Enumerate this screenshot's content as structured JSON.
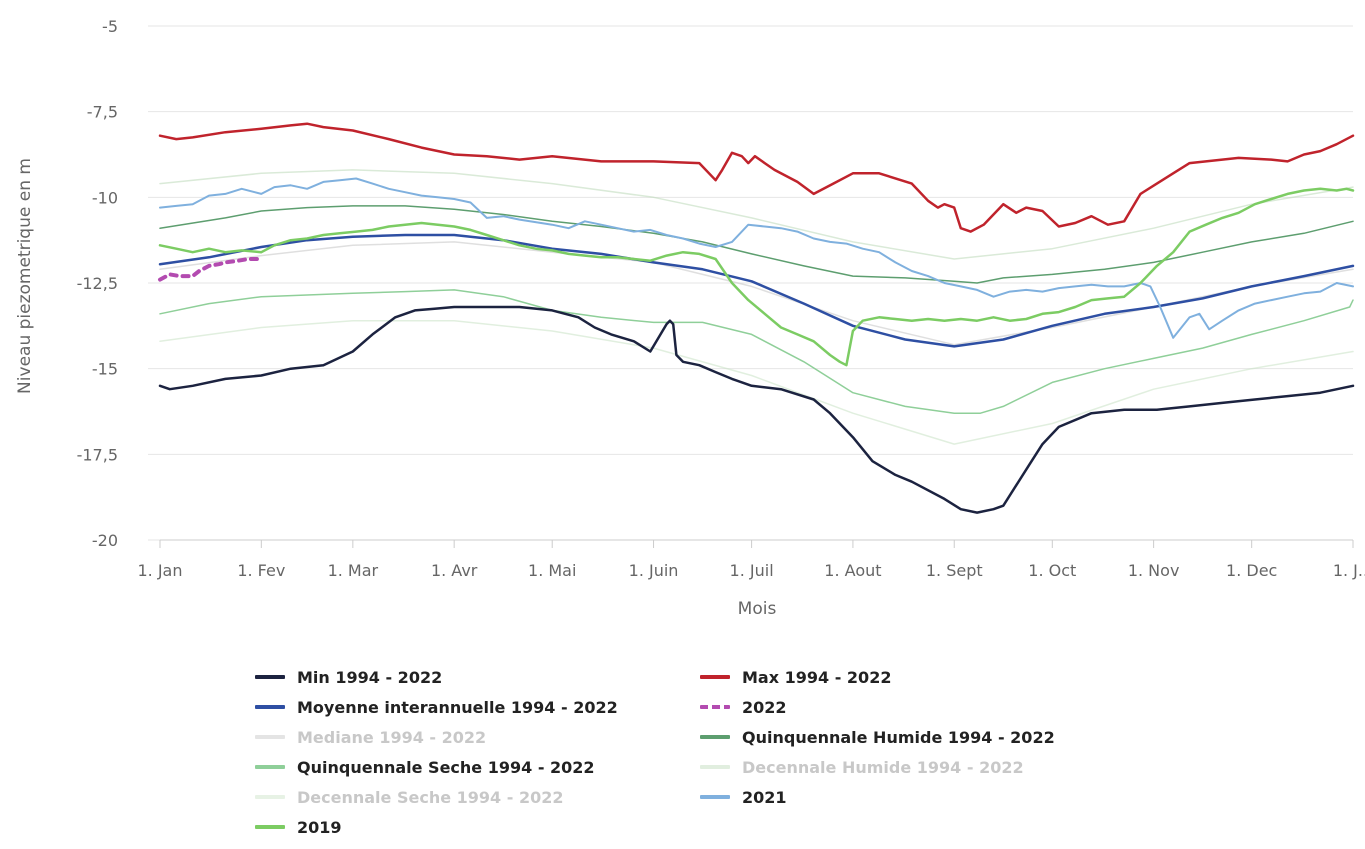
{
  "chart_data": {
    "type": "line",
    "title": "",
    "xlabel": "Mois",
    "ylabel": "Niveau piezometrique en m",
    "ylim": [
      -20,
      -5
    ],
    "yticks": [
      -5,
      -7.5,
      -10,
      -12.5,
      -15,
      -17.5,
      -20
    ],
    "ytick_labels": [
      "-5",
      "-7,5",
      "-10",
      "-12,5",
      "-15",
      "-17,5",
      "-20"
    ],
    "xlim": [
      0,
      365
    ],
    "xticks": [
      0,
      31,
      59,
      90,
      120,
      151,
      181,
      212,
      243,
      273,
      304,
      334,
      365
    ],
    "xtick_labels": [
      "1. Jan",
      "1. Fev",
      "1. Mar",
      "1. Avr",
      "1. Mai",
      "1. Juin",
      "1. Juil",
      "1. Aout",
      "1. Sept",
      "1. Oct",
      "1. Nov",
      "1. Dec",
      "1. J..."
    ],
    "x_unit": "day of year",
    "grid": "horizontal",
    "legend_position": "bottom",
    "series": [
      {
        "name": "Decennale Humide 1994 - 2022",
        "color": "#bcd9b8",
        "width": 1.5,
        "hidden": true,
        "x": [
          0,
          31,
          59,
          90,
          120,
          151,
          181,
          212,
          243,
          273,
          304,
          334,
          365
        ],
        "y": [
          -9.6,
          -9.3,
          -9.2,
          -9.3,
          -9.6,
          -10.0,
          -10.6,
          -11.3,
          -11.8,
          -11.5,
          -10.9,
          -10.2,
          -9.7
        ]
      },
      {
        "name": "Decennale Seche 1994 - 2022",
        "color": "#c9e2c5",
        "width": 1.5,
        "hidden": true,
        "x": [
          0,
          31,
          59,
          90,
          120,
          151,
          181,
          212,
          243,
          273,
          304,
          334,
          365
        ],
        "y": [
          -14.2,
          -13.8,
          -13.6,
          -13.6,
          -13.9,
          -14.4,
          -15.2,
          -16.3,
          -17.2,
          -16.6,
          -15.6,
          -15.0,
          -14.5
        ]
      },
      {
        "name": "Mediane 1994 - 2022",
        "color": "#c4c4c4",
        "width": 1.5,
        "hidden": true,
        "x": [
          0,
          31,
          59,
          90,
          120,
          151,
          181,
          212,
          243,
          273,
          304,
          334,
          365
        ],
        "y": [
          -12.1,
          -11.7,
          -11.4,
          -11.3,
          -11.6,
          -11.9,
          -12.6,
          -13.6,
          -14.3,
          -13.8,
          -13.2,
          -12.6,
          -12.1
        ]
      },
      {
        "name": "Quinquennale Humide 1994 - 2022",
        "color": "#5d9e6f",
        "width": 1.5,
        "x": [
          0,
          20,
          31,
          45,
          59,
          75,
          90,
          105,
          120,
          135,
          151,
          166,
          181,
          197,
          212,
          228,
          243,
          250,
          258,
          273,
          289,
          304,
          319,
          334,
          350,
          365
        ],
        "y": [
          -10.9,
          -10.6,
          -10.4,
          -10.3,
          -10.25,
          -10.25,
          -10.35,
          -10.5,
          -10.7,
          -10.85,
          -11.05,
          -11.3,
          -11.65,
          -12.0,
          -12.3,
          -12.35,
          -12.45,
          -12.5,
          -12.35,
          -12.25,
          -12.1,
          -11.9,
          -11.6,
          -11.3,
          -11.05,
          -10.7
        ]
      },
      {
        "name": "Quinquennale Seche 1994 - 2022",
        "color": "#8fcf99",
        "width": 1.5,
        "x": [
          0,
          15,
          31,
          45,
          59,
          75,
          90,
          105,
          120,
          135,
          151,
          166,
          181,
          197,
          212,
          228,
          243,
          251,
          258,
          273,
          289,
          304,
          319,
          334,
          350,
          364,
          365
        ],
        "y": [
          -13.4,
          -13.1,
          -12.9,
          -12.85,
          -12.8,
          -12.75,
          -12.7,
          -12.9,
          -13.3,
          -13.5,
          -13.65,
          -13.65,
          -14.0,
          -14.8,
          -15.7,
          -16.1,
          -16.3,
          -16.3,
          -16.1,
          -15.4,
          -15.0,
          -14.7,
          -14.4,
          -14.0,
          -13.6,
          -13.2,
          -13.0
        ]
      },
      {
        "name": "Min 1994 - 2022",
        "color": "#1c2340",
        "width": 2.5,
        "x": [
          0,
          3,
          10,
          20,
          31,
          40,
          50,
          59,
          65,
          72,
          78,
          84,
          90,
          100,
          110,
          120,
          128,
          133,
          138,
          145,
          150,
          155,
          156,
          157,
          158,
          160,
          165,
          170,
          175,
          181,
          190,
          200,
          205,
          212,
          218,
          225,
          230,
          240,
          245,
          250,
          255,
          258,
          262,
          266,
          270,
          275,
          285,
          295,
          305,
          315,
          325,
          335,
          345,
          355,
          365
        ],
        "y": [
          -15.5,
          -15.6,
          -15.5,
          -15.3,
          -15.2,
          -15.0,
          -14.9,
          -14.5,
          -14.0,
          -13.5,
          -13.3,
          -13.25,
          -13.2,
          -13.2,
          -13.2,
          -13.3,
          -13.5,
          -13.8,
          -14.0,
          -14.2,
          -14.5,
          -13.7,
          -13.6,
          -13.7,
          -14.6,
          -14.8,
          -14.9,
          -15.1,
          -15.3,
          -15.5,
          -15.6,
          -15.9,
          -16.3,
          -17.0,
          -17.7,
          -18.1,
          -18.3,
          -18.8,
          -19.1,
          -19.2,
          -19.1,
          -19.0,
          -18.4,
          -17.8,
          -17.2,
          -16.7,
          -16.3,
          -16.2,
          -16.2,
          -16.1,
          -16.0,
          -15.9,
          -15.8,
          -15.7,
          -15.5
        ]
      },
      {
        "name": "Moyenne interannuelle 1994 - 2022",
        "color": "#2e4fa3",
        "width": 2.5,
        "x": [
          0,
          15,
          31,
          45,
          59,
          75,
          90,
          105,
          120,
          135,
          151,
          166,
          181,
          197,
          212,
          228,
          243,
          258,
          273,
          289,
          304,
          319,
          334,
          350,
          365
        ],
        "y": [
          -11.95,
          -11.75,
          -11.45,
          -11.25,
          -11.15,
          -11.1,
          -11.1,
          -11.25,
          -11.5,
          -11.65,
          -11.9,
          -12.1,
          -12.45,
          -13.1,
          -13.75,
          -14.15,
          -14.35,
          -14.15,
          -13.75,
          -13.4,
          -13.2,
          -12.95,
          -12.6,
          -12.3,
          -12.0
        ]
      },
      {
        "name": "Max 1994 - 2022",
        "color": "#c0232c",
        "width": 2.5,
        "x": [
          0,
          5,
          10,
          20,
          31,
          40,
          45,
          50,
          59,
          70,
          80,
          90,
          100,
          110,
          120,
          135,
          151,
          165,
          170,
          172,
          175,
          178,
          180,
          182,
          185,
          188,
          195,
          200,
          206,
          212,
          220,
          230,
          235,
          238,
          240,
          243,
          245,
          248,
          252,
          258,
          262,
          265,
          270,
          275,
          280,
          285,
          290,
          295,
          300,
          305,
          310,
          315,
          320,
          330,
          340,
          345,
          350,
          355,
          360,
          365
        ],
        "y": [
          -8.2,
          -8.3,
          -8.25,
          -8.1,
          -8.0,
          -7.9,
          -7.85,
          -7.95,
          -8.05,
          -8.3,
          -8.55,
          -8.75,
          -8.8,
          -8.9,
          -8.8,
          -8.95,
          -8.95,
          -9.0,
          -9.5,
          -9.2,
          -8.7,
          -8.8,
          -9.0,
          -8.8,
          -9.0,
          -9.2,
          -9.55,
          -9.9,
          -9.6,
          -9.3,
          -9.3,
          -9.6,
          -10.1,
          -10.3,
          -10.2,
          -10.3,
          -10.9,
          -11.0,
          -10.8,
          -10.2,
          -10.45,
          -10.3,
          -10.4,
          -10.85,
          -10.75,
          -10.55,
          -10.8,
          -10.7,
          -9.9,
          -9.6,
          -9.3,
          -9.0,
          -8.95,
          -8.85,
          -8.9,
          -8.95,
          -8.75,
          -8.65,
          -8.45,
          -8.2
        ]
      },
      {
        "name": "2022",
        "color": "#b34bb0",
        "width": 4,
        "dashed": true,
        "x": [
          0,
          3,
          6,
          10,
          12,
          15,
          18,
          20,
          24,
          27,
          31
        ],
        "y": [
          -12.4,
          -12.25,
          -12.3,
          -12.3,
          -12.15,
          -12.0,
          -11.95,
          -11.9,
          -11.85,
          -11.8,
          -11.8
        ]
      },
      {
        "name": "2021",
        "color": "#7fb0de",
        "width": 2,
        "x": [
          0,
          5,
          10,
          15,
          20,
          25,
          31,
          35,
          40,
          45,
          50,
          55,
          60,
          65,
          70,
          75,
          80,
          85,
          90,
          95,
          100,
          105,
          110,
          120,
          125,
          130,
          135,
          140,
          145,
          150,
          155,
          160,
          165,
          170,
          175,
          180,
          185,
          190,
          195,
          200,
          205,
          210,
          215,
          220,
          225,
          230,
          235,
          240,
          245,
          250,
          255,
          260,
          265,
          270,
          275,
          280,
          285,
          290,
          295,
          300,
          303,
          306,
          310,
          315,
          318,
          321,
          325,
          330,
          335,
          340,
          345,
          350,
          355,
          360,
          365
        ],
        "y": [
          -10.3,
          -10.25,
          -10.2,
          -9.95,
          -9.9,
          -9.75,
          -9.9,
          -9.7,
          -9.65,
          -9.75,
          -9.55,
          -9.5,
          -9.45,
          -9.6,
          -9.75,
          -9.85,
          -9.95,
          -10.0,
          -10.05,
          -10.15,
          -10.6,
          -10.55,
          -10.65,
          -10.8,
          -10.9,
          -10.7,
          -10.8,
          -10.9,
          -11.0,
          -10.95,
          -11.1,
          -11.2,
          -11.35,
          -11.45,
          -11.3,
          -10.8,
          -10.85,
          -10.9,
          -11.0,
          -11.2,
          -11.3,
          -11.35,
          -11.5,
          -11.6,
          -11.9,
          -12.15,
          -12.3,
          -12.5,
          -12.6,
          -12.7,
          -12.9,
          -12.75,
          -12.7,
          -12.75,
          -12.65,
          -12.6,
          -12.55,
          -12.6,
          -12.6,
          -12.5,
          -12.6,
          -13.2,
          -14.1,
          -13.5,
          -13.4,
          -13.85,
          -13.6,
          -13.3,
          -13.1,
          -13.0,
          -12.9,
          -12.8,
          -12.75,
          -12.5,
          -12.6
        ]
      },
      {
        "name": "2019",
        "color": "#7ccc63",
        "width": 2.5,
        "x": [
          0,
          5,
          10,
          15,
          20,
          25,
          31,
          35,
          40,
          45,
          50,
          55,
          60,
          65,
          70,
          75,
          80,
          85,
          90,
          95,
          100,
          105,
          110,
          115,
          120,
          125,
          130,
          135,
          140,
          145,
          150,
          155,
          160,
          165,
          170,
          175,
          180,
          185,
          190,
          195,
          200,
          205,
          208,
          210,
          212,
          215,
          220,
          225,
          230,
          235,
          240,
          245,
          250,
          255,
          260,
          265,
          270,
          275,
          280,
          285,
          290,
          295,
          300,
          305,
          310,
          315,
          320,
          325,
          330,
          335,
          340,
          345,
          350,
          355,
          360,
          363,
          365
        ],
        "y": [
          -11.4,
          -11.5,
          -11.6,
          -11.5,
          -11.6,
          -11.55,
          -11.6,
          -11.4,
          -11.25,
          -11.2,
          -11.1,
          -11.05,
          -11.0,
          -10.95,
          -10.85,
          -10.8,
          -10.75,
          -10.8,
          -10.85,
          -10.95,
          -11.1,
          -11.25,
          -11.4,
          -11.5,
          -11.55,
          -11.65,
          -11.7,
          -11.75,
          -11.75,
          -11.8,
          -11.85,
          -11.7,
          -11.6,
          -11.65,
          -11.8,
          -12.5,
          -13.0,
          -13.4,
          -13.8,
          -14.0,
          -14.2,
          -14.6,
          -14.8,
          -14.9,
          -13.9,
          -13.6,
          -13.5,
          -13.55,
          -13.6,
          -13.55,
          -13.6,
          -13.55,
          -13.6,
          -13.5,
          -13.6,
          -13.55,
          -13.4,
          -13.35,
          -13.2,
          -13.0,
          -12.95,
          -12.9,
          -12.5,
          -12.0,
          -11.6,
          -11.0,
          -10.8,
          -10.6,
          -10.45,
          -10.2,
          -10.05,
          -9.9,
          -9.8,
          -9.75,
          -9.8,
          -9.75,
          -9.8
        ]
      }
    ]
  },
  "legend": [
    {
      "key": "min",
      "label": "Min 1994 - 2022",
      "color": "#1c2340",
      "faded": false
    },
    {
      "key": "max",
      "label": "Max 1994 - 2022",
      "color": "#c0232c",
      "faded": false
    },
    {
      "key": "moyenne",
      "label": "Moyenne interannuelle 1994 - 2022",
      "color": "#2e4fa3",
      "faded": false
    },
    {
      "key": "y2022",
      "label": "2022",
      "color": "#b34bb0",
      "faded": false,
      "dashed": true
    },
    {
      "key": "mediane",
      "label": "Mediane 1994 - 2022",
      "color": "#c4c4c4",
      "faded": true
    },
    {
      "key": "quin-humide",
      "label": "Quinquennale Humide 1994 - 2022",
      "color": "#5d9e6f",
      "faded": false
    },
    {
      "key": "quin-seche",
      "label": "Quinquennale Seche 1994 - 2022",
      "color": "#8fcf99",
      "faded": false
    },
    {
      "key": "dec-humide",
      "label": "Decennale Humide 1994 - 2022",
      "color": "#bcd9b8",
      "faded": true
    },
    {
      "key": "dec-seche",
      "label": "Decennale Seche 1994 - 2022",
      "color": "#c9e2c5",
      "faded": true
    },
    {
      "key": "y2021",
      "label": "2021",
      "color": "#7fb0de",
      "faded": false
    },
    {
      "key": "y2019",
      "label": "2019",
      "color": "#7ccc63",
      "faded": false
    }
  ]
}
